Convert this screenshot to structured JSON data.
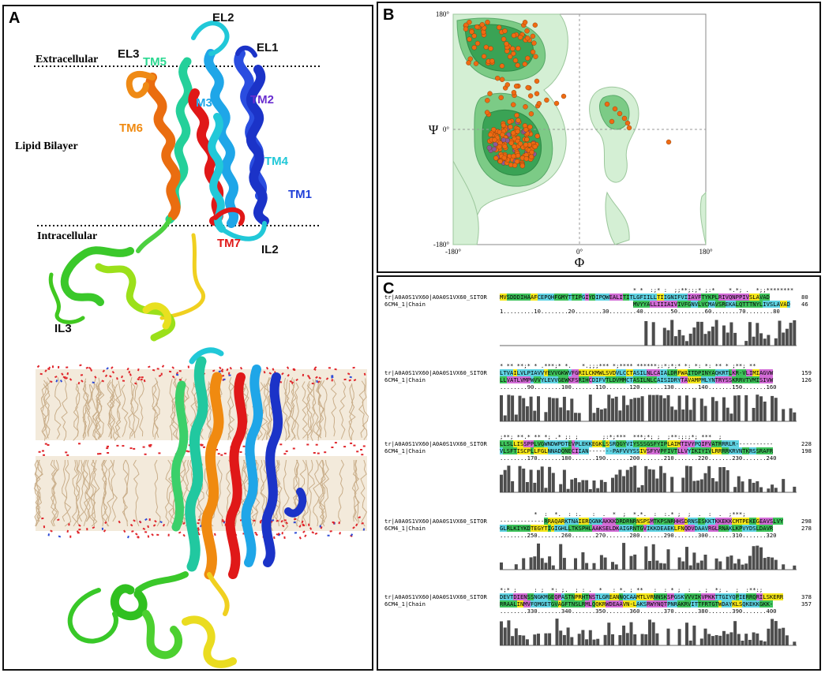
{
  "panels": {
    "a": "A",
    "b": "B",
    "c": "C"
  },
  "panel_a": {
    "boundary_top": "Extracellular",
    "boundary_bottom": "Intracellular",
    "membrane": "Lipid Bilayer",
    "helices": [
      {
        "name": "TM1",
        "color": "#1f3fd8"
      },
      {
        "name": "TM2",
        "color": "#6a2fd0"
      },
      {
        "name": "M3",
        "color": "#1fa6e8"
      },
      {
        "name": "TM4",
        "color": "#21c8d8"
      },
      {
        "name": "TM5",
        "color": "#2ee08a"
      },
      {
        "name": "TM6",
        "color": "#f08a10"
      },
      {
        "name": "TM7",
        "color": "#e01818"
      }
    ],
    "loops": [
      "EL1",
      "EL2",
      "EL3",
      "IL2",
      "IL3"
    ]
  },
  "panel_b": {
    "x_axis": "Φ",
    "y_axis": "Ψ",
    "x_ticks": [
      "-180°",
      "0°",
      "180°"
    ],
    "y_ticks": [
      "180°",
      "0°",
      "-180°"
    ],
    "colors": {
      "light": "#d4efd4",
      "mid": "#7ccb86",
      "dark": "#3aa355",
      "point": "#ef6a12",
      "point_purple": "#8a5a9a"
    }
  },
  "panel_c": {
    "seq1_name": "tr|A0A0S1VX60|A0A0S1VX60_SITOR",
    "seq2_name": "6CM4_1|Chain",
    "blocks": [
      {
        "cons": "                                       * *  :;* :  ;;**;:;* ;:*    *.*; .  *;;********",
        "s1": "MVSDDDIHAAFCEPQHFGMYTTIPGIYDIPQWEALITITLGFIILLTIIGNIFVIIAVFTYKPLRIVQNPPIVSLAVAD",
        "s2": "                                       MVYYALLIIIAIVIVFGNVLVCMAVSREKALQTTTNYLIVSLAVAD",
        "ruler": "1.........10........20........30........40........50........60........70........80",
        "e1": "80",
        "e2": "46"
      },
      {
        "cons": "* ** **;* * .***;* *.   *.;;;*** *;**** ******;:*;*;* *: *: *: ** * ;**; **",
        "s1": "LTVAILVLPIAVVYEVVGKWVFGRILCKMWLSVDVLCCTASILNLCAIALDRFWAITDPINYAQKRTLKR-VLIMIAGVW",
        "s2": "LLVATLVMPWVVYLEVVGEWKFSRIHCDIFVTLDVMMCTASILNLCAISIDRYTAVAMPMLYNTRYSSKRRVTVMISIVW",
        "ruler": "........90........100.......110.......120.......130.......140.......150.......160",
        "e1": "159",
        "e2": "126"
      },
      {
        "cons": ";**; **.* ** *; .* ;: ;       ;:*;***  ***;*; ;  ;**:;:;*; ***  ;",
        "s1": "LLSLLISSPPLVGWNDWPDTEVPLEKKEGKLSSRQGYVIYSSSGSFYIPLAIMTIVYPQIFVATRRRLR-----------",
        "s2": "VLSFTISCPLLFGLNNADQNECIIAN-------PAFVVYSSIVSFYVPFIVTLLVYIKIYIVLRRRRKRVNTKRSSRAFR",
        "ruler": "........170.......180.......190.......200.......210.......220.......230.......240",
        "e1": "228",
        "e2": "198"
      },
      {
        "cons": "          *  :  *.  : :.   :  .  *  ;  *.*.  :  :.* ;  ;  .  :  .  ;***;",
        "s1": "-------------RRAQARKTNAIERQGNKAKKKDRDRNRNSPSMTKPSNRHHSDRNSESKKTKKEKKCMTPEKEGEAVSLVY",
        "s2": "GLRLKIYKDTEGYTIGIGHLLTKSPHLAAKSELDKAIGRNTGVIKKDEAEKLFNQDVDAAVRGLRNAKLKPVYDSLDAVR",
        "ruler": "........250.......260.......270.......280.......290.......300.......310.......320",
        "e1": "298",
        "e2": "278"
      },
      {
        "cons": "*;* ;     : ;  *: ;.  ; : .  *   : *. ; **   :  : * ;  :  . ;  *; .  ;  :**:;",
        "s1": "DEVTDIENSSNGKMGEQPASTNPRHTNSTLGREANNQCAAMTLVRNNSKSPGSKVVVIKVPKKTTGIYQPIERRQRILSKERR",
        "s2": "RRAALINMVFQMGETGVAGFTNSLRMLQQKRWDEAAVN-LAKSRWYNQTPNRAKRVITTFRTGTWDAYKLSQKEKKGKK-",
        "ruler": "........330.......340.......350.......360.......370.......380.......390.......400",
        "e1": "378",
        "e2": "357"
      }
    ],
    "colors": {
      "cyan": "#5fd3e3",
      "magenta": "#d26cd6",
      "yellow": "#f5e71a",
      "green": "#3ec35b",
      "bars": "#4d4d4d"
    }
  }
}
